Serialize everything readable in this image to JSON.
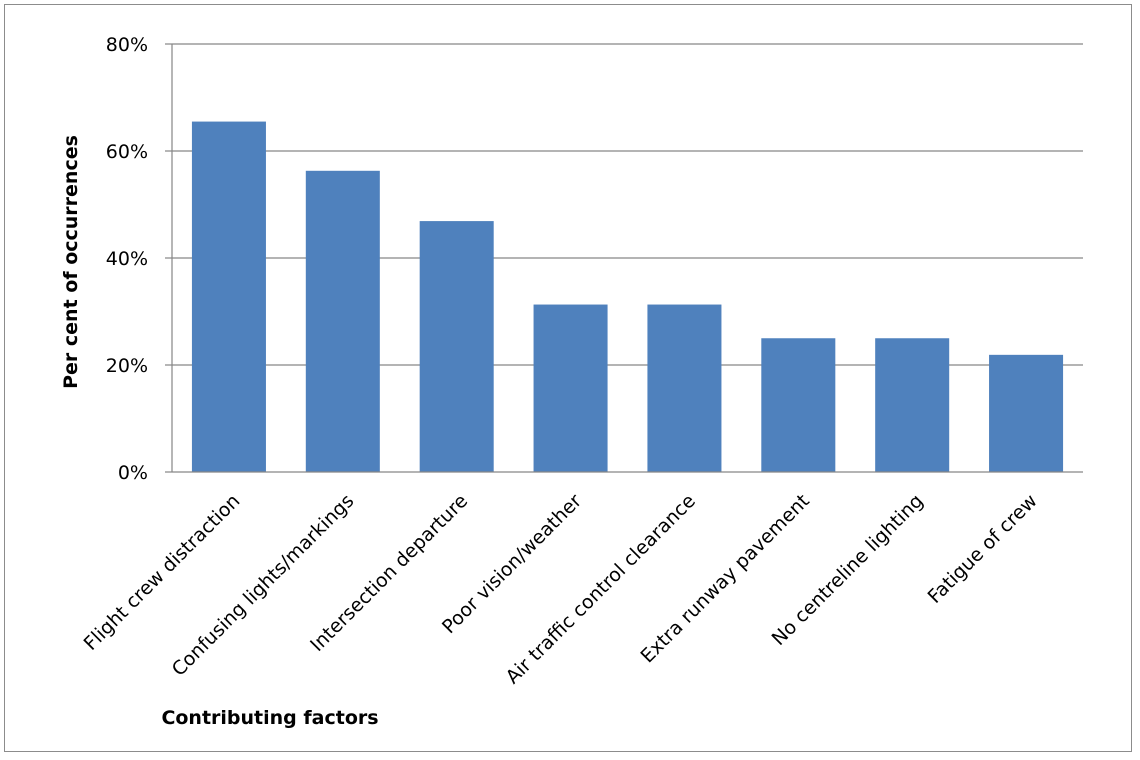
{
  "chart_data": {
    "type": "bar",
    "title": "",
    "xlabel": "Contributing factors",
    "ylabel": "Per cent of occurrences",
    "categories": [
      "Flight crew distraction",
      "Confusing lights/markings",
      "Intersection departure",
      "Poor vision/weather",
      "Air traffic control clearance",
      "Extra runway pavement",
      "No centreline lighting",
      "Fatigue of crew"
    ],
    "series": [
      {
        "values": [
          65.5,
          56.3,
          46.9,
          31.3,
          31.3,
          25.0,
          25.0,
          21.9
        ]
      }
    ],
    "ylim": [
      0,
      80
    ],
    "yticks": [
      "0%",
      "20%",
      "40%",
      "60%",
      "80%"
    ],
    "ytick_values": [
      0,
      20,
      40,
      60,
      80
    ],
    "grid": true,
    "legend": "none",
    "colors": {
      "bar": "#4f81bd",
      "grid": "#868686",
      "axis": "#868686"
    }
  }
}
